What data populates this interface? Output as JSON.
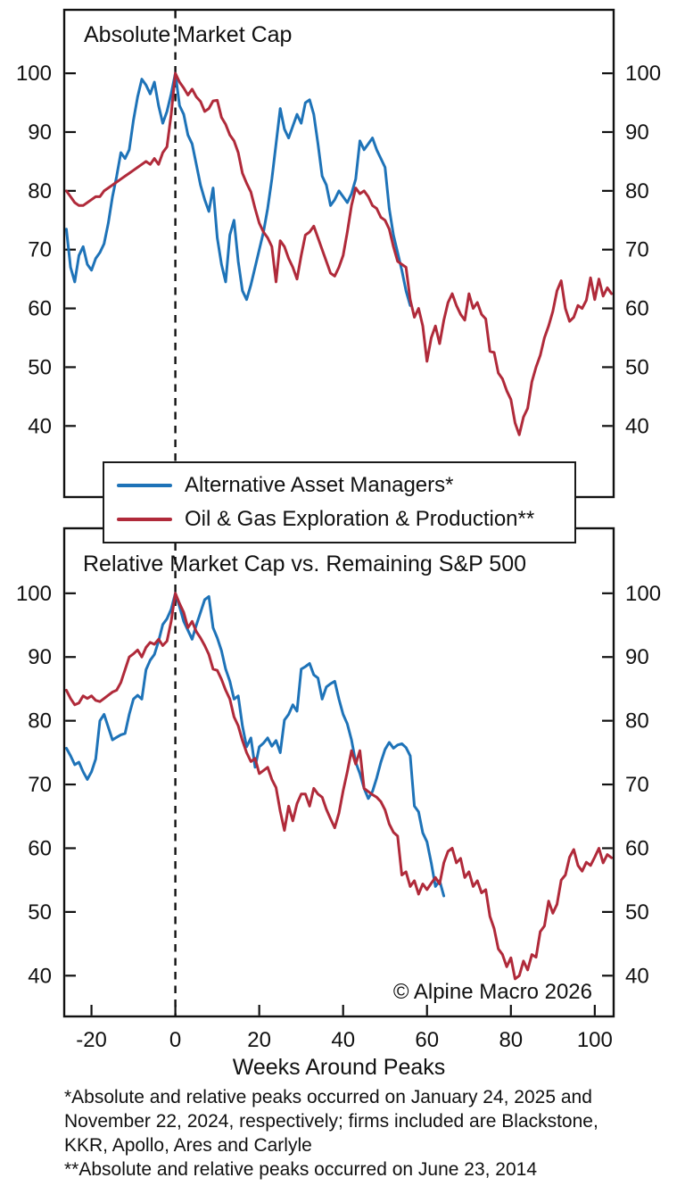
{
  "colors": {
    "blue": "#1e73b8",
    "red": "#b02a3a",
    "axis": "#111111",
    "background": "#ffffff"
  },
  "legend": {
    "position": "between-panels",
    "items": [
      {
        "label": "Alternative Asset Managers*",
        "color": "#1e73b8"
      },
      {
        "label": "Oil & Gas Exploration & Production**",
        "color": "#b02a3a"
      }
    ]
  },
  "annotations": {
    "copyright": "© Alpine Macro 2026"
  },
  "footnotes": {
    "lines": [
      "*Absolute and relative peaks occurred on January 24, 2025 and",
      "November 22, 2024, respectively; firms included are Blackstone,",
      "KKR, Apollo, Ares and Carlyle",
      "**Absolute and relative peaks occurred on June 23, 2014"
    ]
  },
  "chart_data": [
    {
      "type": "line",
      "title": "Absolute Market Cap",
      "xlabel": "",
      "ylabel": "",
      "grid": false,
      "x_range": [
        -26.5,
        104.5
      ],
      "y_range": [
        27.9,
        110.8
      ],
      "x_ticks": [
        -20,
        0,
        20,
        40,
        60,
        80,
        100
      ],
      "y_ticks": [
        40,
        50,
        60,
        70,
        80,
        90,
        100
      ],
      "peak_marker_week": 0,
      "series": [
        {
          "name": "Alternative Asset Managers*",
          "color": "#1e73b8",
          "start_week": -26,
          "step": 1,
          "values": [
            73.5,
            67,
            64.5,
            69,
            70.5,
            67.5,
            66.5,
            68.5,
            69.5,
            71,
            74.5,
            79,
            82.5,
            86.5,
            85.5,
            87,
            92,
            96,
            99,
            98,
            96.5,
            98.5,
            94.5,
            91.5,
            93.5,
            96.5,
            100,
            94.5,
            93,
            89.5,
            88,
            84.5,
            81,
            78.5,
            76.5,
            80.5,
            72,
            67.5,
            64.5,
            72.5,
            75,
            68,
            63,
            61.5,
            64,
            67,
            70,
            73,
            77,
            82,
            88,
            94,
            90.5,
            89,
            91,
            93,
            91.5,
            95,
            95.5,
            93,
            88,
            82.5,
            81,
            77.5,
            78.5,
            80,
            79,
            78,
            79.5,
            82,
            88.5,
            87,
            88,
            89,
            87,
            85.5,
            84,
            77,
            72.5,
            69.5,
            66.5,
            63,
            60.5
          ]
        },
        {
          "name": "Oil & Gas Exploration & Production**",
          "color": "#b02a3a",
          "start_week": -26,
          "step": 1,
          "values": [
            80,
            79,
            78,
            77.5,
            77.5,
            78,
            78.5,
            79,
            79,
            80,
            80.5,
            81,
            81.5,
            82,
            82.5,
            83,
            83.5,
            84,
            84.5,
            85,
            84.5,
            85.5,
            84.5,
            86.5,
            87.5,
            93,
            100,
            98.5,
            97.5,
            96.3,
            97.3,
            96,
            95.2,
            93.5,
            94,
            95.3,
            95.4,
            92.5,
            91.3,
            89.5,
            88.5,
            86.5,
            83,
            81.3,
            79.8,
            77,
            74.5,
            73,
            72,
            70.5,
            64.5,
            71.5,
            70.5,
            68.5,
            67,
            65,
            69,
            72.5,
            73,
            74,
            72,
            70,
            68,
            66,
            65.5,
            67,
            69,
            73,
            77.5,
            80.5,
            79.5,
            80,
            79,
            77.5,
            77,
            75.5,
            75,
            73.5,
            70.5,
            68,
            67.5,
            67,
            61.5,
            58.5,
            60,
            57,
            51,
            55,
            57,
            54,
            58,
            61,
            62.5,
            60.5,
            59,
            58,
            62.5,
            60,
            61,
            59,
            58.2,
            52.7,
            52.5,
            49,
            48,
            46,
            44.5,
            40.5,
            38.5,
            41.5,
            43,
            47.5,
            50,
            52,
            55,
            57,
            59.5,
            63,
            64.7,
            60,
            57.8,
            58.5,
            60.5,
            60,
            61.4,
            65.2,
            61.5,
            65,
            62.1,
            63.5,
            62.5
          ]
        }
      ]
    },
    {
      "type": "line",
      "title": "Relative Market Cap vs. Remaining S&P 500",
      "xlabel": "Weeks Around Peaks",
      "ylabel": "",
      "grid": false,
      "x_range": [
        -26.5,
        104.5
      ],
      "y_range": [
        33.6,
        110.2
      ],
      "x_ticks": [
        -20,
        0,
        20,
        40,
        60,
        80,
        100
      ],
      "y_ticks": [
        40,
        50,
        60,
        70,
        80,
        90,
        100
      ],
      "peak_marker_week": 0,
      "series": [
        {
          "name": "Alternative Asset Managers*",
          "color": "#1e73b8",
          "start_week": -26,
          "step": 1,
          "values": [
            75.7,
            74.5,
            73.1,
            73.5,
            72,
            70.8,
            72,
            74,
            80,
            81,
            79,
            77,
            77.4,
            77.8,
            78,
            81,
            83.4,
            84,
            83.4,
            88,
            89.5,
            90.4,
            92.5,
            95.1,
            96,
            97.5,
            100,
            97.9,
            95.6,
            94.2,
            92.8,
            95,
            97,
            99,
            99.5,
            94.6,
            93,
            91,
            88.1,
            86.2,
            83.4,
            83.9,
            79.2,
            75.9,
            77.3,
            72.7,
            75.9,
            76.5,
            77.3,
            76,
            76.9,
            75,
            80.1,
            81,
            82.5,
            81.5,
            88.1,
            88.5,
            89,
            87.2,
            86.7,
            83.4,
            85.3,
            85.8,
            86.2,
            83.4,
            81,
            79.5,
            77,
            73.5,
            71.7,
            69.4,
            67.8,
            68.9,
            71,
            73.5,
            75.5,
            76.6,
            75.7,
            76.2,
            76.4,
            75.8,
            74.5,
            66.6,
            65.7,
            62.4,
            61,
            57.7,
            54,
            54.9,
            52.5
          ]
        },
        {
          "name": "Oil & Gas Exploration & Production**",
          "color": "#b02a3a",
          "start_week": -26,
          "step": 1,
          "values": [
            84.8,
            83.5,
            82.5,
            82.8,
            83.9,
            83.5,
            83.9,
            83.2,
            83,
            83.5,
            84,
            84.5,
            84.8,
            86,
            88,
            90,
            90.5,
            91.1,
            90,
            91.5,
            92.3,
            92,
            92.8,
            91.8,
            92.5,
            95.6,
            100,
            98.4,
            97,
            94.6,
            95.6,
            94,
            93,
            91.8,
            90.4,
            88.1,
            87.9,
            86.5,
            84.8,
            83.4,
            80.6,
            79.2,
            76.9,
            75,
            73.6,
            74.1,
            71.7,
            72.2,
            72.7,
            70.8,
            69.5,
            65.8,
            62.8,
            66.6,
            64.3,
            67,
            68.5,
            68.5,
            66.6,
            69.4,
            68.5,
            68,
            66.1,
            64.6,
            63.2,
            65.5,
            69,
            72,
            75.3,
            73.2,
            75.3,
            69.4,
            68.9,
            68.4,
            68,
            67.3,
            66,
            63.8,
            62.5,
            61.9,
            55.8,
            56.3,
            54,
            54.9,
            52.8,
            54.4,
            53.5,
            54.5,
            55.4,
            54.4,
            57.7,
            59.5,
            60,
            57.7,
            58.4,
            55.4,
            56.3,
            54,
            54.9,
            53,
            53.5,
            49.3,
            47.4,
            44.2,
            43.3,
            41.4,
            42.8,
            39.5,
            40,
            42.3,
            40.9,
            43.3,
            42.9,
            46.9,
            47.8,
            51.7,
            49.8,
            51.2,
            55,
            55.8,
            58.6,
            59.8,
            57.3,
            56.4,
            57.8,
            57.3,
            58.6,
            60,
            57.7,
            59,
            58.5
          ]
        }
      ]
    }
  ]
}
